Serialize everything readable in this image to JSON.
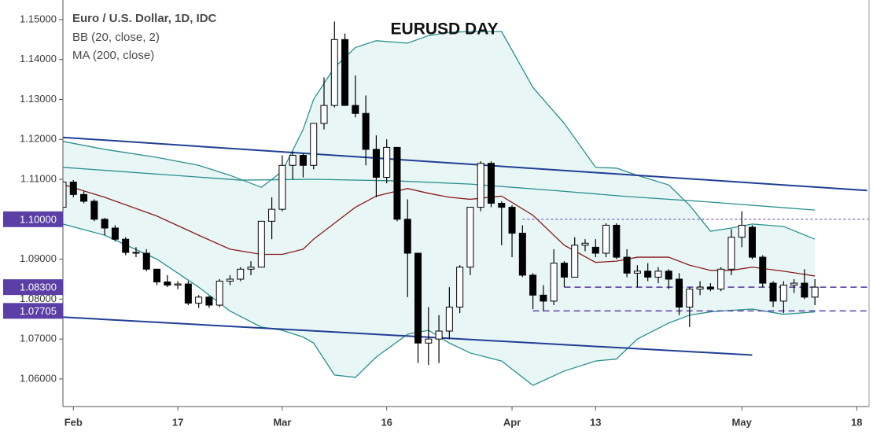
{
  "chart_data": {
    "type": "candlestick",
    "title": "EURUSD DAY",
    "legend": [
      "Euro / U.S. Dollar, 1D, IDC",
      "BB (20, close, 2)",
      "MA (200, close)"
    ],
    "categories": [
      null,
      "Feb",
      null,
      null,
      null,
      null,
      null,
      null,
      null,
      null,
      null,
      "17",
      null,
      null,
      null,
      null,
      null,
      null,
      null,
      null,
      null,
      "Mar",
      null,
      null,
      null,
      null,
      null,
      null,
      null,
      null,
      null,
      "16",
      null,
      null,
      null,
      null,
      null,
      null,
      null,
      null,
      null,
      null,
      null,
      "Apr",
      null,
      null,
      null,
      null,
      null,
      null,
      null,
      "13",
      null,
      null,
      null,
      null,
      null,
      null,
      null,
      null,
      null,
      null,
      null,
      null,
      null,
      "May",
      null,
      null,
      null,
      null,
      null,
      null,
      null,
      null,
      null,
      null,
      "18",
      null
    ],
    "open": [
      1.103,
      1.1093,
      1.1062,
      1.1045,
      1.1,
      1.0978,
      1.095,
      1.0917,
      1.0915,
      1.0875,
      1.0843,
      1.0835,
      1.0838,
      1.079,
      1.0805,
      1.0785,
      1.0845,
      1.085,
      1.0875,
      1.088,
      1.0995,
      1.1025,
      1.1135,
      1.116,
      1.1135,
      1.124,
      1.1285,
      1.145,
      1.1285,
      1.1265,
      1.1175,
      1.1105,
      1.118,
      1.1,
      1.0915,
      1.069,
      1.07,
      1.072,
      1.078,
      1.088,
      1.103,
      1.114,
      1.104,
      1.103,
      1.0965,
      1.086,
      1.081,
      1.0795,
      1.089,
      1.0855,
      1.0935,
      1.093,
      1.0915,
      1.0985,
      1.0905,
      1.0865,
      1.087,
      1.0855,
      1.087,
      1.085,
      1.078,
      1.0825,
      1.083,
      1.0825,
      1.0875,
      1.0955,
      1.098,
      1.0905,
      1.084,
      1.0795,
      1.0835,
      1.084,
      1.0805,
      null,
      null,
      null,
      null,
      null
    ],
    "high": [
      1.1096,
      1.1098,
      1.107,
      1.105,
      1.1003,
      1.0985,
      1.0955,
      1.093,
      1.0925,
      1.0875,
      1.086,
      1.0845,
      1.0845,
      1.081,
      1.0808,
      1.085,
      1.086,
      1.088,
      1.0895,
      1.0995,
      1.1055,
      1.116,
      1.117,
      1.1165,
      1.124,
      1.1355,
      1.1495,
      1.1465,
      1.136,
      1.131,
      1.121,
      1.12,
      1.118,
      1.105,
      1.0915,
      1.078,
      1.076,
      1.083,
      1.0885,
      1.103,
      1.1145,
      1.1145,
      1.1045,
      1.1035,
      1.0985,
      1.0865,
      1.0835,
      1.0925,
      1.0895,
      1.0955,
      1.095,
      1.095,
      1.099,
      1.099,
      1.0925,
      1.0885,
      1.089,
      1.088,
      1.0875,
      1.0865,
      1.083,
      1.0845,
      1.084,
      1.088,
      1.0975,
      1.102,
      1.0985,
      1.091,
      1.0845,
      1.0845,
      1.085,
      1.0875,
      1.085,
      null,
      null,
      null,
      null,
      null
    ],
    "low": [
      1.102,
      1.1055,
      1.104,
      1.0995,
      1.096,
      1.0945,
      1.091,
      1.0905,
      1.087,
      1.0835,
      1.083,
      1.0825,
      1.0785,
      1.0778,
      1.0778,
      1.078,
      1.0835,
      1.0845,
      1.086,
      1.088,
      1.095,
      1.102,
      1.11,
      1.1105,
      1.1125,
      1.1225,
      1.128,
      1.1285,
      1.1255,
      1.1135,
      1.1055,
      1.109,
      1.0995,
      1.0805,
      1.064,
      1.0635,
      1.064,
      1.07,
      1.0765,
      1.086,
      1.102,
      1.103,
      1.0935,
      1.0905,
      1.0855,
      1.0775,
      1.077,
      1.0785,
      1.083,
      1.0855,
      1.092,
      1.0905,
      1.0905,
      1.09,
      1.0855,
      1.083,
      1.0845,
      1.084,
      1.0825,
      1.076,
      1.073,
      1.081,
      1.082,
      1.082,
      1.086,
      1.093,
      1.09,
      1.083,
      1.078,
      1.0765,
      1.0815,
      1.08,
      1.0785,
      null,
      null,
      null,
      null,
      null
    ],
    "close": [
      1.1093,
      1.1062,
      1.1045,
      1.1,
      1.0978,
      1.095,
      1.0917,
      1.0915,
      1.0875,
      1.0843,
      1.0835,
      1.0838,
      1.079,
      1.0805,
      1.0785,
      1.0845,
      1.085,
      1.0875,
      1.088,
      1.0995,
      1.1025,
      1.1135,
      1.116,
      1.1135,
      1.124,
      1.1285,
      1.145,
      1.1285,
      1.1265,
      1.1175,
      1.1105,
      1.118,
      1.1,
      1.0915,
      1.069,
      1.07,
      1.072,
      1.078,
      1.088,
      1.103,
      1.114,
      1.104,
      1.103,
      1.0965,
      1.086,
      1.081,
      1.0795,
      1.089,
      1.0855,
      1.0935,
      1.094,
      1.0915,
      1.0985,
      1.0905,
      1.0865,
      1.087,
      1.0855,
      1.087,
      1.085,
      1.078,
      1.0825,
      1.083,
      1.0825,
      1.0875,
      1.0955,
      1.0985,
      1.0905,
      1.084,
      1.0795,
      1.0835,
      1.084,
      1.0805,
      1.083,
      null,
      null,
      null,
      null,
      null
    ],
    "up_color": "#ffffff",
    "down_color": "#000000",
    "wick_color": "#000000",
    "overlays": [
      {
        "color": "#2a8f8f",
        "x": [
          0,
          4,
          9,
          13,
          16,
          19,
          21,
          23,
          24,
          26,
          28,
          30,
          33,
          35,
          37,
          39,
          42,
          45,
          48,
          51,
          53,
          55,
          58,
          60,
          62,
          64,
          66,
          69,
          72
        ],
        "values": [
          1.1195,
          1.1175,
          1.1155,
          1.1135,
          1.111,
          1.108,
          1.112,
          1.1225,
          1.13,
          1.138,
          1.143,
          1.1447,
          1.1441,
          1.146,
          1.1468,
          1.147,
          1.147,
          1.133,
          1.124,
          1.113,
          1.1128,
          1.111,
          1.1086,
          1.1035,
          1.097,
          1.0978,
          1.0988,
          1.0982,
          1.095
        ]
      },
      {
        "color": "#2a8f8f",
        "x": [
          0,
          4,
          9,
          13,
          16,
          19,
          21,
          23,
          24,
          26,
          28,
          30,
          33,
          35,
          37,
          39,
          42,
          45,
          48,
          51,
          53,
          55,
          58,
          60,
          62,
          64,
          66,
          69,
          72
        ],
        "values": [
          1.0988,
          1.096,
          1.09,
          1.083,
          1.077,
          1.073,
          1.0722,
          1.0705,
          1.069,
          1.061,
          1.0604,
          1.0655,
          1.0712,
          1.0722,
          1.069,
          1.0665,
          1.0645,
          1.0584,
          1.062,
          1.0645,
          1.065,
          1.07,
          1.074,
          1.076,
          1.0768,
          1.0772,
          1.0775,
          1.0762,
          1.0768
        ]
      },
      {
        "color": "#8b1a1a",
        "x": [
          0,
          4,
          9,
          13,
          16,
          19,
          21,
          23,
          24,
          26,
          28,
          30,
          33,
          35,
          37,
          39,
          42,
          45,
          48,
          51,
          53,
          55,
          58,
          60,
          62,
          64,
          66,
          69,
          72
        ],
        "values": [
          1.1087,
          1.1055,
          1.1008,
          1.096,
          1.0925,
          1.0912,
          1.0912,
          1.0925,
          1.095,
          1.099,
          1.103,
          1.1058,
          1.1077,
          1.1065,
          1.1055,
          1.105,
          1.1058,
          1.101,
          1.0935,
          1.0892,
          1.0895,
          1.0905,
          1.0905,
          1.0885,
          1.0872,
          1.0872,
          1.088,
          1.087,
          1.0858
        ]
      },
      {
        "color": "#2a8f8f",
        "x": [
          0,
          17,
          24,
          32,
          39,
          47,
          54,
          62,
          72
        ],
        "values": [
          1.113,
          1.1098,
          1.11,
          1.1096,
          1.1088,
          1.1072,
          1.1057,
          1.1043,
          1.1023
        ]
      }
    ],
    "band_fill": "#e9f6f6",
    "trendlines": [
      {
        "color": "#1f3f94",
        "x": [
          0,
          77
        ],
        "values": [
          1.1205,
          1.1072
        ]
      },
      {
        "color": "#1f3f94",
        "x": [
          0,
          66
        ],
        "values": [
          1.0755,
          1.066
        ]
      }
    ],
    "levels": [
      {
        "value": 1.1,
        "label": "1.10000",
        "from": 44,
        "style": "dotted"
      },
      {
        "value": 1.083,
        "label": "1.08300",
        "from": 48,
        "style": "dashed"
      },
      {
        "value": 1.07705,
        "label": "1.07705",
        "from": 45,
        "style": "dashed"
      }
    ],
    "level_color": "#5b3fa6",
    "ylim": [
      1.0531,
      1.1549
    ],
    "yticks": [
      {
        "value": 1.06,
        "label": "1.06000"
      },
      {
        "value": 1.07,
        "label": "1.07000"
      },
      {
        "value": 1.08,
        "label": "1.08000"
      },
      {
        "value": 1.09,
        "label": "1.09000"
      },
      {
        "value": 1.1,
        "label": "1.10000"
      },
      {
        "value": 1.11,
        "label": "1.11000"
      },
      {
        "value": 1.12,
        "label": "1.12000"
      },
      {
        "value": 1.13,
        "label": "1.13000"
      },
      {
        "value": 1.14,
        "label": "1.14000"
      },
      {
        "value": 1.15,
        "label": "1.15000"
      }
    ]
  }
}
